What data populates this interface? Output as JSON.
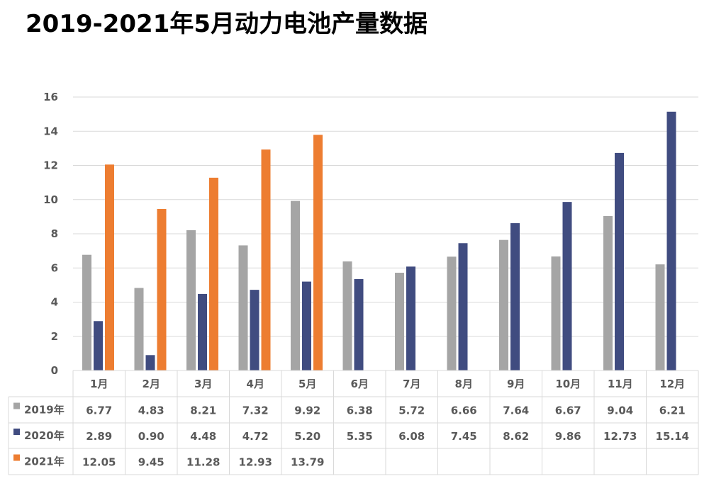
{
  "title": "2019-2021年5月动力电池产量数据",
  "chart_data": {
    "type": "bar",
    "title": "2019-2021年5月动力电池产量数据",
    "categories": [
      "1月",
      "2月",
      "3月",
      "4月",
      "5月",
      "6月",
      "7月",
      "8月",
      "9月",
      "10月",
      "11月",
      "12月"
    ],
    "series": [
      {
        "name": "2019年",
        "color": "#a5a5a5",
        "values": [
          6.77,
          4.83,
          8.21,
          7.32,
          9.92,
          6.38,
          5.72,
          6.66,
          7.64,
          6.67,
          9.04,
          6.21
        ]
      },
      {
        "name": "2020年",
        "color": "#404c80",
        "values": [
          2.89,
          0.9,
          4.48,
          4.72,
          5.2,
          5.35,
          6.08,
          7.45,
          8.62,
          9.86,
          12.73,
          15.14
        ]
      },
      {
        "name": "2021年",
        "color": "#ed7d31",
        "values": [
          12.05,
          9.45,
          11.28,
          12.93,
          13.79,
          null,
          null,
          null,
          null,
          null,
          null,
          null
        ]
      }
    ],
    "value_labels": [
      [
        "6.77",
        "4.83",
        "8.21",
        "7.32",
        "9.92",
        "6.38",
        "5.72",
        "6.66",
        "7.64",
        "6.67",
        "9.04",
        "6.21"
      ],
      [
        "2.89",
        "0.90",
        "4.48",
        "4.72",
        "5.20",
        "5.35",
        "6.08",
        "7.45",
        "8.62",
        "9.86",
        "12.73",
        "15.14"
      ],
      [
        "12.05",
        "9.45",
        "11.28",
        "12.93",
        "13.79",
        "",
        "",
        "",
        "",
        "",
        "",
        ""
      ]
    ],
    "ylim": [
      0,
      16
    ],
    "yticks": [
      "0",
      "2",
      "4",
      "6",
      "8",
      "10",
      "12",
      "14",
      "16"
    ],
    "grid": true,
    "legend": "data-table-left",
    "xlabel": "",
    "ylabel": ""
  }
}
